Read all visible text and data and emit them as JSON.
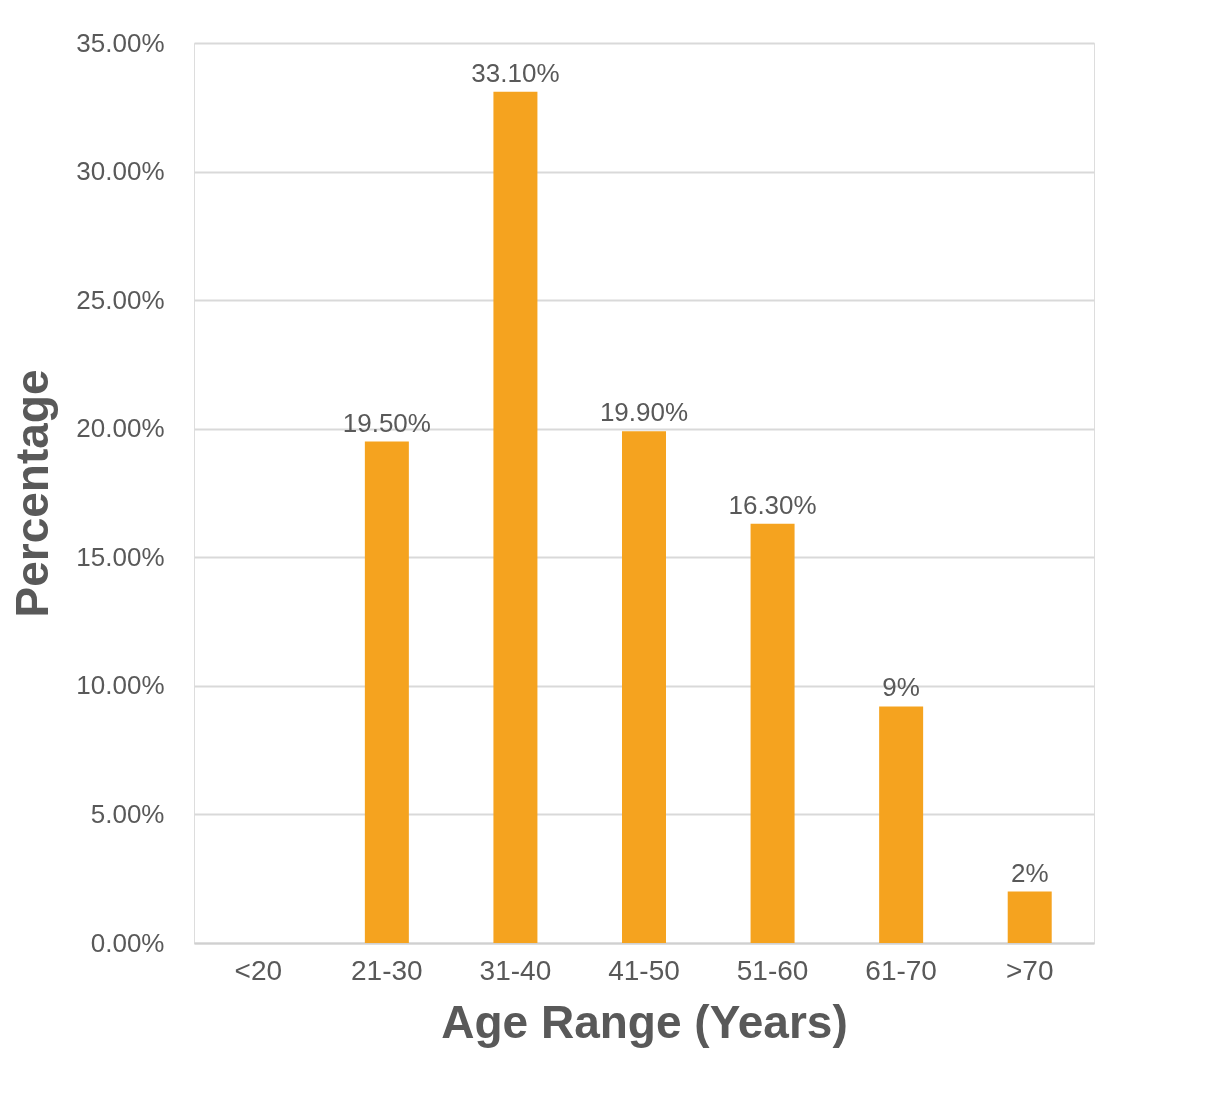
{
  "chart_data": {
    "type": "bar",
    "xlabel": "Age Range (Years)",
    "ylabel": "Percentage",
    "categories": [
      "<20",
      "21-30",
      "31-40",
      "41-50",
      "51-60",
      "61-70",
      ">70"
    ],
    "values": [
      null,
      19.5,
      33.1,
      19.9,
      16.3,
      9.2,
      2.0
    ],
    "value_labels": [
      null,
      "19.50%",
      "33.10%",
      "19.90%",
      "16.30%",
      "9%",
      "2%"
    ],
    "color": "#f5a31f",
    "ylim": [
      0,
      35
    ],
    "yticks": [
      {
        "value": 0,
        "label": "0.00%"
      },
      {
        "value": 5,
        "label": "5.00%"
      },
      {
        "value": 10,
        "label": "10.00%"
      },
      {
        "value": 15,
        "label": "15.00%"
      },
      {
        "value": 20,
        "label": "20.00%"
      },
      {
        "value": 25,
        "label": "25.00%"
      },
      {
        "value": 30,
        "label": "30.00%"
      },
      {
        "value": 35,
        "label": "35.00%"
      }
    ],
    "grid": "y"
  }
}
